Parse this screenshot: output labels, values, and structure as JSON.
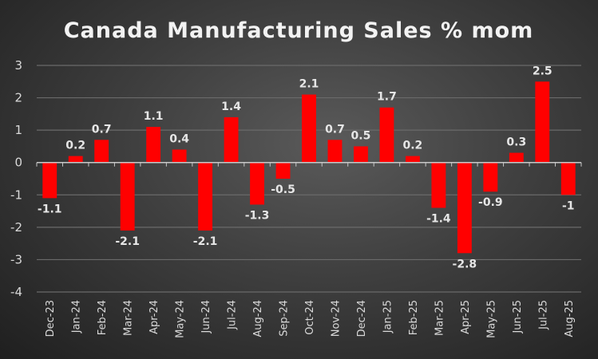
{
  "chart_data": {
    "type": "bar",
    "title": "Canada Manufacturing Sales % mom",
    "xlabel": "",
    "ylabel": "",
    "ylim": [
      -4,
      3
    ],
    "yticks": [
      3,
      2,
      1,
      0,
      -1,
      -2,
      -3,
      -4
    ],
    "grid": true,
    "legend": "none",
    "bar_color": "#ff0000",
    "categories": [
      "Dec-23",
      "Jan-24",
      "Feb-24",
      "Mar-24",
      "Apr-24",
      "May-24",
      "Jun-24",
      "Jul-24",
      "Aug-24",
      "Sep-24",
      "Oct-24",
      "Nov-24",
      "Dec-24",
      "Jan-25",
      "Feb-25",
      "Mar-25",
      "Apr-25",
      "May-25",
      "Jun-25",
      "Jul-25",
      "Aug-25"
    ],
    "values": [
      -1.1,
      0.2,
      0.7,
      -2.1,
      1.1,
      0.4,
      -2.1,
      1.4,
      -1.3,
      -0.5,
      2.1,
      0.7,
      0.5,
      1.7,
      0.2,
      -1.4,
      -2.8,
      -0.9,
      0.3,
      2.5,
      -1
    ],
    "data_labels": [
      "-1.1",
      "0.2",
      "0.7",
      "-2.1",
      "1.1",
      "0.4",
      "-2.1",
      "1.4",
      "-1.3",
      "-0.5",
      "2.1",
      "0.7",
      "0.5",
      "1.7",
      "0.2",
      "-1.4",
      "-2.8",
      "-0.9",
      "0.3",
      "2.5",
      "-1"
    ]
  }
}
